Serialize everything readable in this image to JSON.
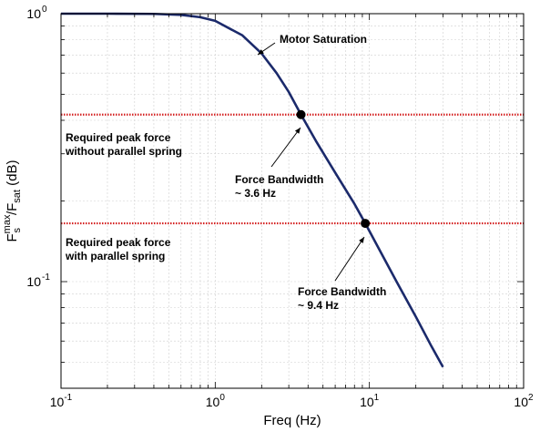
{
  "chart_data": {
    "type": "line",
    "x_scale": "log",
    "y_scale": "log",
    "xlim": [
      0.1,
      100
    ],
    "ylim": [
      0.04,
      1
    ],
    "grid": true,
    "xlabel": "Freq (Hz)",
    "ylabel": {
      "main": "F",
      "sub": "s",
      "sup": "max",
      "sep": "/F",
      "sub2": "sat",
      "unit": " (dB)"
    },
    "x_ticks": [
      {
        "value": 0.1,
        "base": "10",
        "exp": "-1"
      },
      {
        "value": 1,
        "base": "10",
        "exp": "0"
      },
      {
        "value": 10,
        "base": "10",
        "exp": "1"
      },
      {
        "value": 100,
        "base": "10",
        "exp": "2"
      }
    ],
    "y_ticks": [
      {
        "value": 0.1,
        "base": "10",
        "exp": "-1"
      },
      {
        "value": 1,
        "base": "10",
        "exp": "0"
      }
    ],
    "series": [
      {
        "color": "#1b2a6b",
        "x": [
          0.1,
          0.2,
          0.4,
          0.6,
          0.8,
          1.0,
          1.5,
          2.0,
          2.5,
          3.0,
          3.6,
          4.5,
          6.0,
          8.0,
          9.4,
          12.0,
          15.0,
          20.0,
          25.0,
          30.0
        ],
        "y": [
          1.0,
          1.0,
          0.998,
          0.99,
          0.97,
          0.94,
          0.83,
          0.71,
          0.6,
          0.51,
          0.42,
          0.335,
          0.255,
          0.195,
          0.165,
          0.127,
          0.1,
          0.074,
          0.058,
          0.048
        ]
      }
    ],
    "hlines": [
      {
        "y": 0.42,
        "color": "#d42020",
        "label": [
          "Required peak force",
          "without parallel spring"
        ]
      },
      {
        "y": 0.165,
        "color": "#d42020",
        "label": [
          "Required peak force",
          "with parallel spring"
        ]
      }
    ],
    "points": [
      {
        "x": 3.6,
        "y": 0.42,
        "label": [
          "Force Bandwidth",
          "~ 3.6 Hz"
        ]
      },
      {
        "x": 9.4,
        "y": 0.165,
        "label": [
          "Force Bandwidth",
          "~ 9.4 Hz"
        ]
      }
    ],
    "annotations": [
      {
        "text": "Motor Saturation",
        "x": 1.75,
        "y": 0.79
      }
    ]
  }
}
